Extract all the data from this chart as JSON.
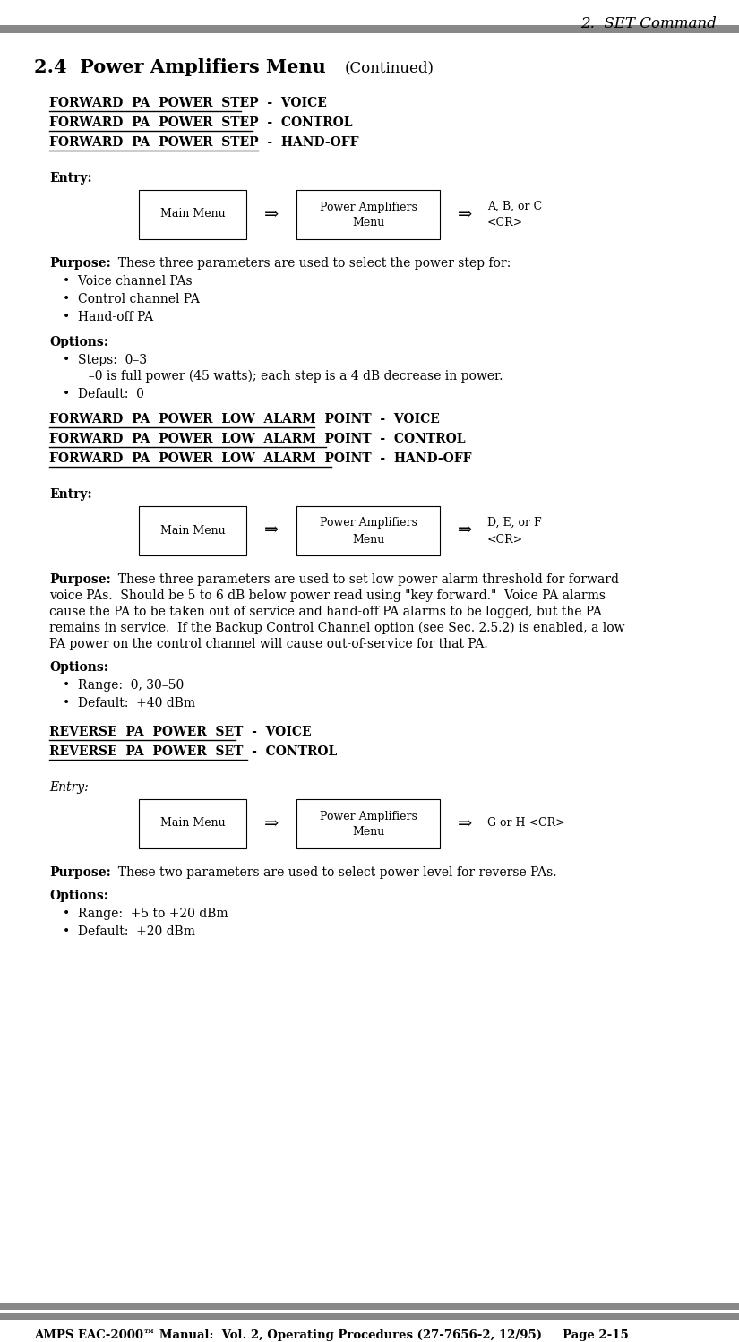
{
  "title_right": "2.  SET Command",
  "section_title": "2.4  Power Amplifiers Menu",
  "section_subtitle": "(Continued)",
  "bg_color": "#ffffff",
  "header_bar_color": "#888888",
  "footer_bar_color": "#888888",
  "footer_text": "AMPS EAC-2000™ Manual:  Vol. 2, Operating Procedures (27-7656-2, 12/95)     Page 2-15",
  "block1_headings": [
    "FORWARD  PA  POWER  STEP  -  VOICE",
    "FORWARD  PA  POWER  STEP  -  CONTROL",
    "FORWARD  PA  POWER  STEP  -  HAND-OFF"
  ],
  "block1_entry": "Entry:",
  "block1_box1": "Main Menu",
  "block1_box2": "Power Amplifiers\nMenu",
  "block1_box3": "A, B, or C\n<CR>",
  "block1_purpose_label": "Purpose:",
  "block1_purpose": "  These three parameters are used to select the power step for:",
  "block1_bullets": [
    "Voice channel PAs",
    "Control channel PA",
    "Hand-off PA"
  ],
  "block1_options_label": "Options:",
  "block1_opt1": "Steps:  0–3",
  "block1_opt1b": "  –0 is full power (45 watts); each step is a 4 dB decrease in power.",
  "block1_opt2": "Default:  0",
  "block2_headings": [
    "FORWARD  PA  POWER  LOW  ALARM  POINT  -  VOICE",
    "FORWARD  PA  POWER  LOW  ALARM  POINT  -  CONTROL",
    "FORWARD  PA  POWER  LOW  ALARM  POINT  -  HAND-OFF"
  ],
  "block2_entry": "Entry:",
  "block2_box1": "Main Menu",
  "block2_box2": "Power Amplifiers\nMenu",
  "block2_box3": "D, E, or F\n<CR>",
  "block2_purpose_label": "Purpose:",
  "block2_purpose_line1": "  These three parameters are used to set low power alarm threshold for forward",
  "block2_purpose_line2": "voice PAs.  Should be 5 to 6 dB below power read using \"key forward.\"  Voice PA alarms",
  "block2_purpose_line3": "cause the PA to be taken out of service and hand-off PA alarms to be logged, but the PA",
  "block2_purpose_line4": "remains in service.  If the Backup Control Channel option (see Sec. 2.5.2) is enabled, a low",
  "block2_purpose_line5": "PA power on the control channel will cause out-of-service for that PA.",
  "block2_options_label": "Options:",
  "block2_opt1": "Range:  0, 30–50",
  "block2_opt2": "Default:  +40 dBm",
  "block3_headings": [
    "REVERSE  PA  POWER  SET  -  VOICE",
    "REVERSE  PA  POWER  SET  -  CONTROL"
  ],
  "block3_entry": "Entry:",
  "block3_box1": "Main Menu",
  "block3_box2": "Power Amplifiers\nMenu",
  "block3_box3": "G or H <CR>",
  "block3_purpose_label": "Purpose:",
  "block3_purpose": "  These two parameters are used to select power level for reverse PAs.",
  "block3_options_label": "Options:",
  "block3_opt1": "Range:  +5 to +20 dBm",
  "block3_opt2": "Default:  +20 dBm"
}
